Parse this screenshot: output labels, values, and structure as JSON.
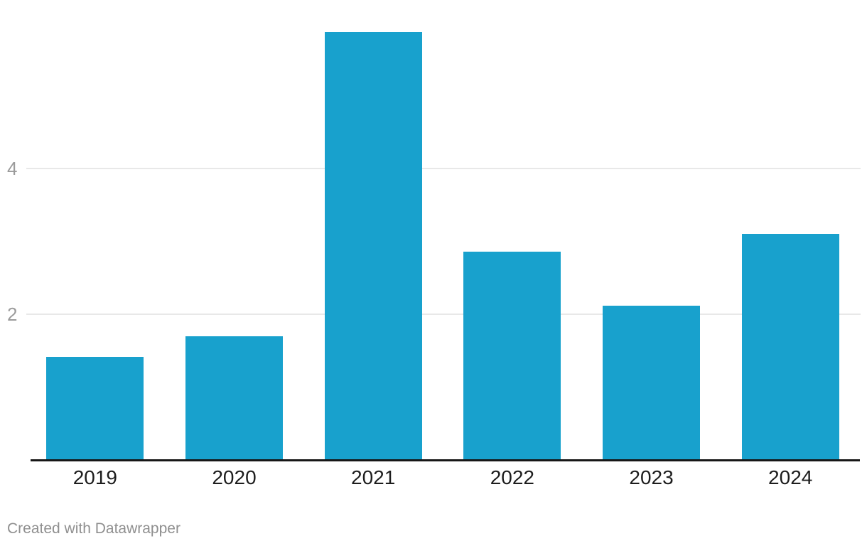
{
  "chart_data": {
    "type": "bar",
    "categories": [
      "2019",
      "2020",
      "2021",
      "2022",
      "2023",
      "2024"
    ],
    "values": [
      1.41,
      1.69,
      5.88,
      2.86,
      2.11,
      3.1
    ],
    "title": "",
    "xlabel": "",
    "ylabel": "",
    "ylim": [
      0,
      6
    ],
    "yticks": [
      2,
      4
    ],
    "grid": "horizontal",
    "legend_position": "none",
    "bar_color": "#18a1cd",
    "gridline_color": "#e8e8e8",
    "axis_color": "#161616",
    "x_tick_color": "#1d1d1d",
    "y_tick_color": "#9b9b9b"
  },
  "footer": {
    "attribution": "Created with Datawrapper"
  }
}
